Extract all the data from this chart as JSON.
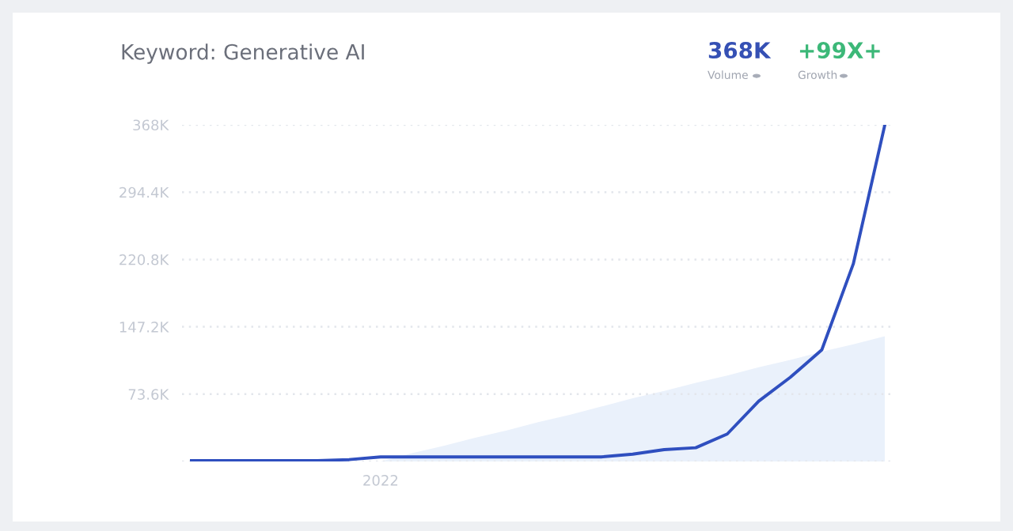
{
  "chart_data": {
    "type": "line",
    "title": "Keyword: Generative AI",
    "annotations": [
      "368K",
      "Volume",
      "+99X+",
      "Growth"
    ],
    "categories": [
      null,
      null,
      null,
      null,
      null,
      null,
      "2022",
      null,
      null,
      null,
      null,
      null,
      null,
      null,
      null,
      null,
      null,
      null,
      null,
      null,
      null,
      null,
      null
    ],
    "series": [
      {
        "type": "area",
        "color": "#eaf1fb",
        "values": [
          null,
          null,
          null,
          null,
          null,
          null,
          0,
          9000,
          17000,
          26000,
          34000,
          43000,
          51000,
          60000,
          69000,
          77000,
          86000,
          94000,
          103000,
          111000,
          120000,
          128000,
          137000
        ]
      },
      {
        "color": "#2f4fbf",
        "values": [
          1000,
          1000,
          1000,
          1000,
          1000,
          2000,
          5000,
          5000,
          5000,
          5000,
          5000,
          5000,
          5000,
          5000,
          8000,
          13000,
          15000,
          30000,
          66000,
          92000,
          122000,
          216000,
          368000
        ]
      }
    ],
    "ylim": [
      0,
      368000
    ],
    "yticks": [
      {
        "value": 0,
        "label": null
      },
      {
        "value": 73600,
        "label": "73.6K"
      },
      {
        "value": 147200,
        "label": "147.2K"
      },
      {
        "value": 220800,
        "label": "220.8K"
      },
      {
        "value": 294400,
        "label": "294.4K"
      },
      {
        "value": 368000,
        "label": "368K"
      }
    ],
    "grid": "y",
    "line_style": "solid",
    "marker": "none",
    "legend": false
  }
}
